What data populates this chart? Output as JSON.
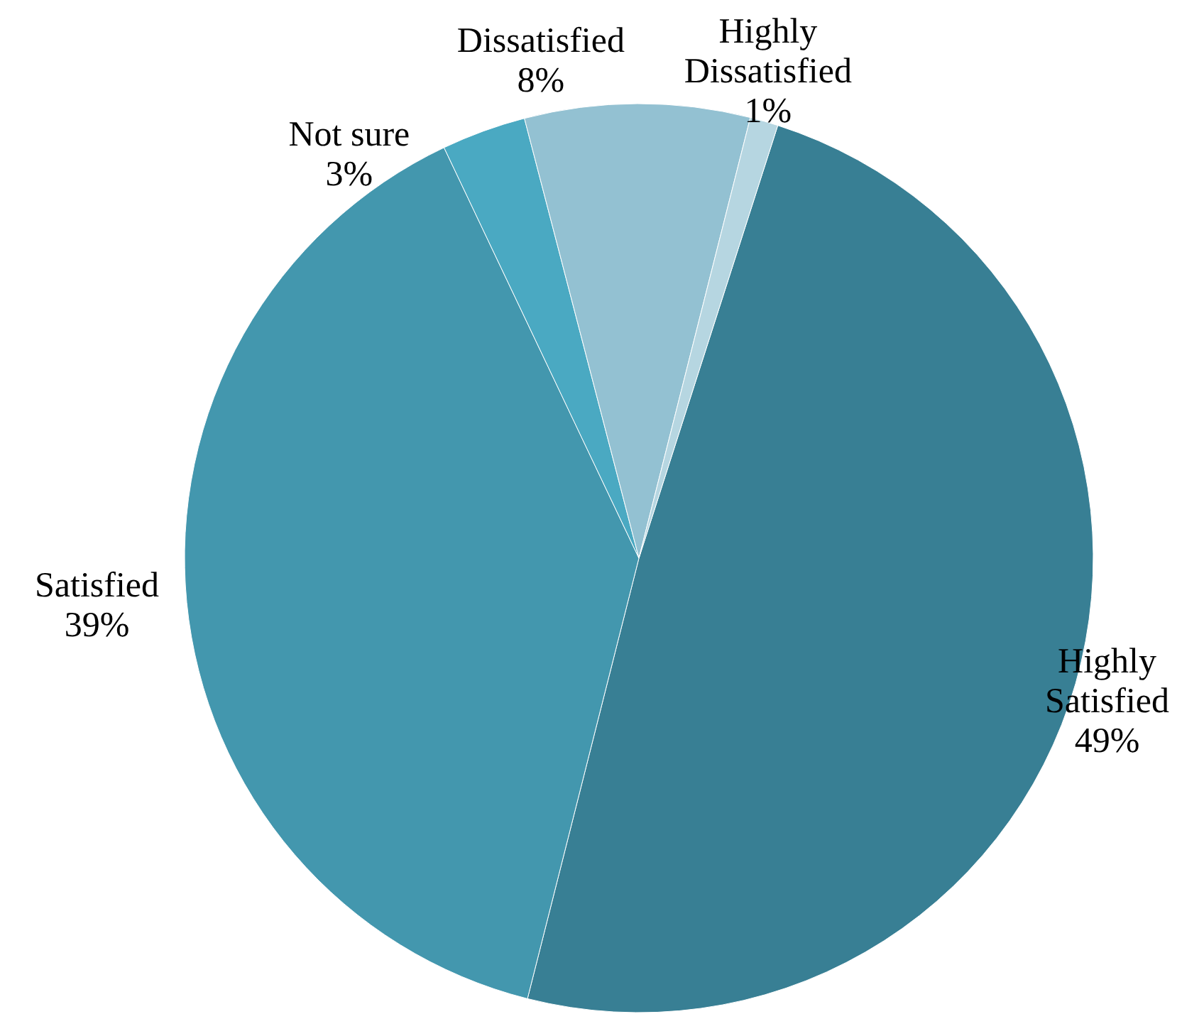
{
  "chart_data": {
    "type": "pie",
    "categories": [
      "Highly Satisfied",
      "Satisfied",
      "Not sure",
      "Dissatisfied",
      "Highly Dissatisfied"
    ],
    "values": [
      49,
      39,
      3,
      8,
      1
    ],
    "colors": [
      "#387f94",
      "#4397ae",
      "#4aa9c2",
      "#93c1d2",
      "#b6d6e1"
    ],
    "value_labels": [
      "49%",
      "39%",
      "3%",
      "8%",
      "1%"
    ]
  }
}
